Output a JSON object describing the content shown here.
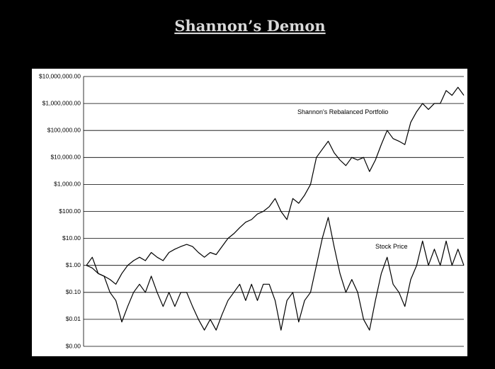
{
  "chart_data": {
    "type": "line",
    "title": "Shannon’s Demon",
    "log_scale": true,
    "grid": true,
    "ylim": [
      0.001,
      10000000
    ],
    "yticks": [
      {
        "value": 0.001,
        "label": "$0.00"
      },
      {
        "value": 0.01,
        "label": "$0.01"
      },
      {
        "value": 0.1,
        "label": "$0.10"
      },
      {
        "value": 1,
        "label": "$1.00"
      },
      {
        "value": 10,
        "label": "$10.00"
      },
      {
        "value": 100,
        "label": "$100.00"
      },
      {
        "value": 1000,
        "label": "$1,000.00"
      },
      {
        "value": 10000,
        "label": "$10,000.00"
      },
      {
        "value": 100000,
        "label": "$100,000.00"
      },
      {
        "value": 1000000,
        "label": "$1,000,000.00"
      },
      {
        "value": 10000000,
        "label": "$10,000,000.00"
      }
    ],
    "categories": [
      null,
      null,
      null,
      null,
      null,
      null,
      null,
      null,
      null,
      null,
      null,
      null,
      null,
      null,
      null,
      null,
      null,
      null,
      null,
      null,
      null,
      null,
      null,
      null,
      null,
      null,
      null,
      null,
      null,
      null,
      null,
      null,
      null,
      null,
      null,
      null,
      null,
      null,
      null,
      null,
      null,
      null,
      null,
      null,
      null,
      null,
      null,
      null,
      null,
      null,
      null,
      null,
      null,
      null,
      null,
      null,
      null,
      null,
      null,
      null,
      null,
      null,
      null,
      null,
      null
    ],
    "series": [
      {
        "name": "Shannon's Rebalanced Portfolio",
        "color": "#000000",
        "values": [
          1,
          0.8,
          0.5,
          0.4,
          0.3,
          0.2,
          0.5,
          1,
          1.5,
          2,
          1.5,
          3,
          2,
          1.5,
          3,
          4,
          5,
          6,
          5,
          3,
          2,
          3,
          2.5,
          5,
          10,
          15,
          25,
          40,
          50,
          80,
          100,
          150,
          300,
          100,
          50,
          300,
          200,
          400,
          1000,
          10000,
          20000,
          40000,
          15000,
          8000,
          5000,
          10000,
          8000,
          10000,
          3000,
          8000,
          30000,
          100000,
          50000,
          40000,
          30000,
          200000,
          500000,
          1000000,
          600000,
          1000000,
          1000000,
          3000000,
          2000000,
          4000000,
          2000000
        ]
      },
      {
        "name": "Stock Price",
        "color": "#000000",
        "values": [
          1,
          2,
          0.5,
          0.4,
          0.1,
          0.05,
          0.008,
          0.03,
          0.1,
          0.2,
          0.1,
          0.4,
          0.1,
          0.03,
          0.1,
          0.03,
          0.1,
          0.1,
          0.03,
          0.01,
          0.004,
          0.01,
          0.004,
          0.015,
          0.05,
          0.1,
          0.2,
          0.05,
          0.2,
          0.05,
          0.2,
          0.2,
          0.05,
          0.004,
          0.05,
          0.1,
          0.008,
          0.05,
          0.1,
          1,
          10,
          60,
          5,
          0.5,
          0.1,
          0.3,
          0.1,
          0.01,
          0.004,
          0.05,
          0.5,
          2,
          0.2,
          0.1,
          0.03,
          0.3,
          1,
          8,
          1,
          4,
          1,
          8,
          1,
          4,
          1
        ]
      }
    ]
  }
}
